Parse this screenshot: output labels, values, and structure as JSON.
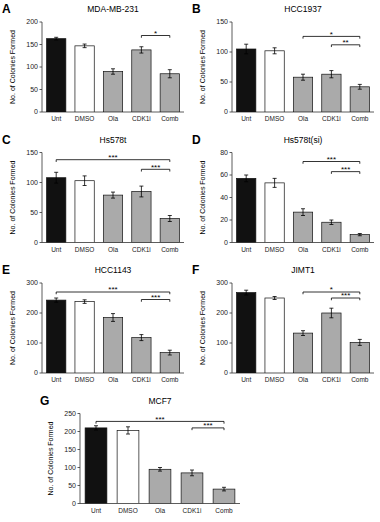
{
  "chart_data": [
    {
      "type": "bar",
      "panel_label": "A",
      "title": "MDA-MB-231",
      "ylabel": "No. of Colonies Formed",
      "categories": [
        "Unt",
        "DMSO",
        "Ola",
        "CDK1i",
        "Comb"
      ],
      "values": [
        163,
        147,
        90,
        138,
        85
      ],
      "errors": [
        3,
        4,
        6,
        7,
        9
      ],
      "colors": [
        "#111111",
        "#ffffff",
        "#aaaaaa",
        "#aaaaaa",
        "#aaaaaa"
      ],
      "ylim": [
        0,
        200
      ],
      "yticks": [
        0,
        50,
        100,
        150,
        200
      ],
      "annotations": [
        {
          "from": "CDK1i",
          "to": "Comb",
          "y": 170,
          "text": "*"
        }
      ]
    },
    {
      "type": "bar",
      "panel_label": "B",
      "title": "HCC1937",
      "ylabel": "No. of Colonies Formed",
      "categories": [
        "Unt",
        "DMSO",
        "Ola",
        "CDK1i",
        "Comb"
      ],
      "values": [
        105,
        102,
        58,
        63,
        42
      ],
      "errors": [
        8,
        5,
        5,
        6,
        4
      ],
      "colors": [
        "#111111",
        "#ffffff",
        "#aaaaaa",
        "#aaaaaa",
        "#aaaaaa"
      ],
      "ylim": [
        0,
        150
      ],
      "yticks": [
        0,
        50,
        100,
        150
      ],
      "annotations": [
        {
          "from": "Ola",
          "to": "Comb",
          "y": 126,
          "text": "*"
        },
        {
          "from": "CDK1i",
          "to": "Comb",
          "y": 112,
          "text": "**"
        }
      ]
    },
    {
      "type": "bar",
      "panel_label": "C",
      "title": "Hs578t",
      "ylabel": "No. of Colonies Formed",
      "categories": [
        "Unt",
        "DMSO",
        "Ola",
        "CDK1i",
        "Comb"
      ],
      "values": [
        108,
        103,
        79,
        85,
        40
      ],
      "errors": [
        9,
        8,
        5,
        9,
        5
      ],
      "colors": [
        "#111111",
        "#ffffff",
        "#aaaaaa",
        "#aaaaaa",
        "#aaaaaa"
      ],
      "ylim": [
        0,
        150
      ],
      "yticks": [
        0,
        50,
        100,
        150
      ],
      "annotations": [
        {
          "from": "Unt",
          "to": "Comb",
          "y": 138,
          "text": "***"
        },
        {
          "from": "CDK1i",
          "to": "Comb",
          "y": 122,
          "text": "***"
        }
      ]
    },
    {
      "type": "bar",
      "panel_label": "D",
      "title": "Hs578t(si)",
      "ylabel": "No. of Colonies Formed",
      "categories": [
        "Unt",
        "DMSO",
        "Ola",
        "CDK1i",
        "Comb"
      ],
      "values": [
        57,
        53,
        27,
        18,
        7
      ],
      "errors": [
        3,
        4,
        3,
        2,
        1
      ],
      "colors": [
        "#111111",
        "#ffffff",
        "#aaaaaa",
        "#aaaaaa",
        "#aaaaaa"
      ],
      "ylim": [
        0,
        80
      ],
      "yticks": [
        0,
        20,
        40,
        60,
        80
      ],
      "annotations": [
        {
          "from": "Ola",
          "to": "Comb",
          "y": 72,
          "text": "***"
        },
        {
          "from": "CDK1i",
          "to": "Comb",
          "y": 63,
          "text": "***"
        }
      ]
    },
    {
      "type": "bar",
      "panel_label": "E",
      "title": "HCC1143",
      "ylabel": "No. of Colonies Formed",
      "categories": [
        "Unt",
        "DMSO",
        "Ola",
        "CDK1i",
        "Comb"
      ],
      "values": [
        243,
        238,
        185,
        118,
        68
      ],
      "errors": [
        7,
        6,
        13,
        10,
        8
      ],
      "colors": [
        "#111111",
        "#ffffff",
        "#aaaaaa",
        "#aaaaaa",
        "#aaaaaa"
      ],
      "ylim": [
        0,
        300
      ],
      "yticks": [
        0,
        100,
        200,
        300
      ],
      "annotations": [
        {
          "from": "Unt",
          "to": "Comb",
          "y": 270,
          "text": "***"
        },
        {
          "from": "CDK1i",
          "to": "Comb",
          "y": 245,
          "text": "***"
        }
      ]
    },
    {
      "type": "bar",
      "panel_label": "F",
      "title": "JIMT1",
      "ylabel": "No. of Colonies Formed",
      "categories": [
        "Unt",
        "DMSO",
        "Ola",
        "CDK1i",
        "Comb"
      ],
      "values": [
        268,
        250,
        133,
        200,
        102
      ],
      "errors": [
        8,
        5,
        8,
        16,
        10
      ],
      "colors": [
        "#111111",
        "#ffffff",
        "#aaaaaa",
        "#aaaaaa",
        "#aaaaaa"
      ],
      "ylim": [
        0,
        300
      ],
      "yticks": [
        0,
        100,
        200,
        300
      ],
      "annotations": [
        {
          "from": "Ola",
          "to": "Comb",
          "y": 270,
          "text": "*"
        },
        {
          "from": "CDK1i",
          "to": "Comb",
          "y": 250,
          "text": "***"
        }
      ]
    },
    {
      "type": "bar",
      "panel_label": "G",
      "title": "MCF7",
      "ylabel": "No. of Colonies Formed",
      "categories": [
        "Unt",
        "DMSO",
        "Ola",
        "CDK1i",
        "Comb"
      ],
      "values": [
        210,
        203,
        95,
        85,
        40
      ],
      "errors": [
        6,
        10,
        5,
        8,
        5
      ],
      "colors": [
        "#111111",
        "#ffffff",
        "#aaaaaa",
        "#aaaaaa",
        "#aaaaaa"
      ],
      "ylim": [
        0,
        250
      ],
      "yticks": [
        0,
        50,
        100,
        150,
        200,
        250
      ],
      "annotations": [
        {
          "from": "Unt",
          "to": "Comb",
          "y": 228,
          "text": "***"
        },
        {
          "from": "CDK1i",
          "to": "Comb",
          "y": 210,
          "text": "***"
        }
      ]
    }
  ]
}
